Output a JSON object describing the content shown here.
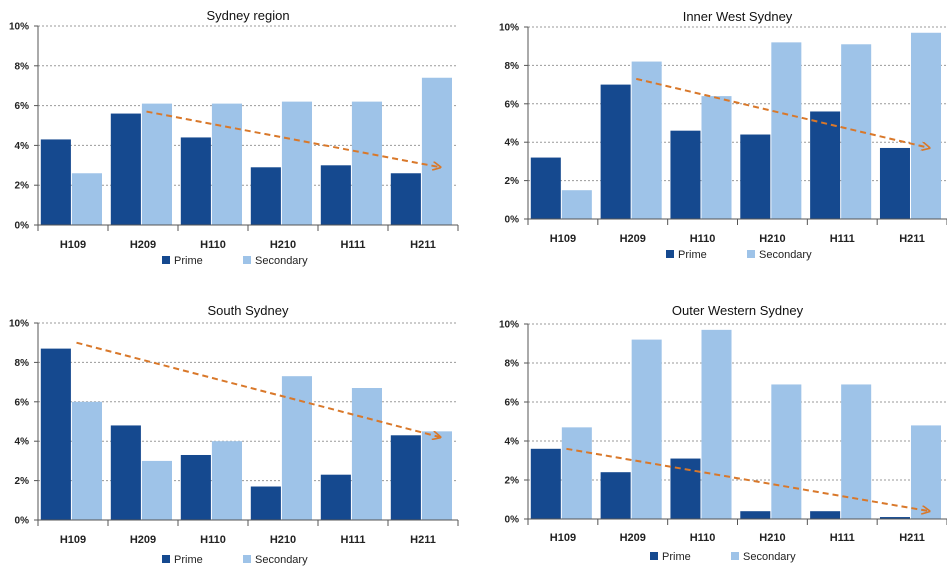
{
  "chart_data": [
    {
      "type": "bar",
      "title": "Sydney region",
      "categories": [
        "H109",
        "H209",
        "H110",
        "H210",
        "H111",
        "H211"
      ],
      "series": [
        {
          "name": "Prime",
          "values": [
            4.3,
            5.6,
            4.4,
            2.9,
            3.0,
            2.6
          ]
        },
        {
          "name": "Secondary",
          "values": [
            2.6,
            6.1,
            6.1,
            6.2,
            6.2,
            7.4
          ]
        }
      ],
      "ylim": [
        0,
        10
      ],
      "yticks": [
        "0%",
        "2%",
        "4%",
        "6%",
        "8%",
        "10%"
      ],
      "trend": {
        "from_category": "H209",
        "from_value": 5.7,
        "to_category": "H211",
        "to_value": 2.9
      },
      "grid": true,
      "legend": "bottom"
    },
    {
      "type": "bar",
      "title": "Inner West Sydney",
      "categories": [
        "H109",
        "H209",
        "H110",
        "H210",
        "H111",
        "H211"
      ],
      "series": [
        {
          "name": "Prime",
          "values": [
            3.2,
            7.0,
            4.6,
            4.4,
            5.6,
            3.7
          ]
        },
        {
          "name": "Secondary",
          "values": [
            1.5,
            8.2,
            6.4,
            9.2,
            9.1,
            9.7
          ]
        }
      ],
      "ylim": [
        0,
        10
      ],
      "yticks": [
        "0%",
        "2%",
        "4%",
        "6%",
        "8%",
        "10%"
      ],
      "trend": {
        "from_category": "H209",
        "from_value": 7.3,
        "to_category": "H211",
        "to_value": 3.7
      },
      "grid": true,
      "legend": "bottom"
    },
    {
      "type": "bar",
      "title": "South Sydney",
      "categories": [
        "H109",
        "H209",
        "H110",
        "H210",
        "H111",
        "H211"
      ],
      "series": [
        {
          "name": "Prime",
          "values": [
            8.7,
            4.8,
            3.3,
            1.7,
            2.3,
            4.3
          ]
        },
        {
          "name": "Secondary",
          "values": [
            6.0,
            3.0,
            4.0,
            7.3,
            6.7,
            4.5
          ]
        }
      ],
      "ylim": [
        0,
        10
      ],
      "yticks": [
        "0%",
        "2%",
        "4%",
        "6%",
        "8%",
        "10%"
      ],
      "trend": {
        "from_category": "H109",
        "from_value": 9.0,
        "to_category": "H211",
        "to_value": 4.2
      },
      "grid": true,
      "legend": "bottom"
    },
    {
      "type": "bar",
      "title": "Outer Western Sydney",
      "categories": [
        "H109",
        "H209",
        "H110",
        "H210",
        "H111",
        "H211"
      ],
      "series": [
        {
          "name": "Prime",
          "values": [
            3.6,
            2.4,
            3.1,
            0.4,
            0.4,
            0.1
          ]
        },
        {
          "name": "Secondary",
          "values": [
            4.7,
            9.2,
            9.7,
            6.9,
            6.9,
            4.8
          ]
        }
      ],
      "ylim": [
        0,
        10
      ],
      "yticks": [
        "0%",
        "2%",
        "4%",
        "6%",
        "8%",
        "10%"
      ],
      "trend": {
        "from_category": "H109",
        "from_value": 3.6,
        "to_category": "H211",
        "to_value": 0.4
      },
      "grid": true,
      "legend": "bottom"
    }
  ],
  "colors": {
    "prime": "#15498f",
    "secondary": "#9ec3e8",
    "trend": "#d9782a"
  }
}
